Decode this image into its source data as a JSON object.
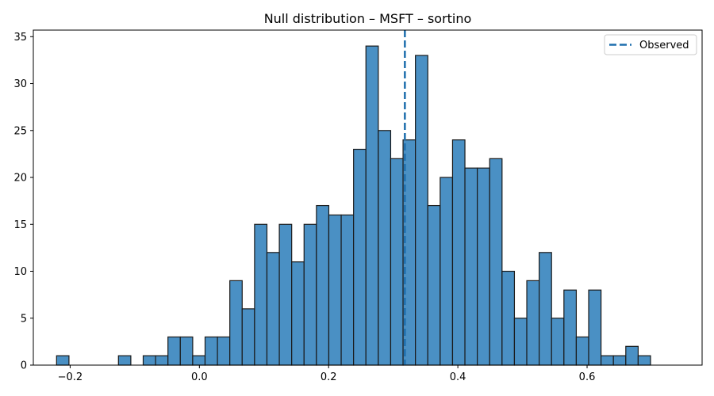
{
  "chart_data": {
    "type": "bar",
    "title": "Null distribution – MSFT – sortino",
    "xlabel": "",
    "ylabel": "",
    "xlim": [
      -0.257,
      0.778
    ],
    "ylim": [
      0,
      35.7
    ],
    "bin_start": -0.221,
    "bin_width": 0.01915,
    "values": [
      1,
      0,
      0,
      0,
      0,
      1,
      0,
      1,
      1,
      3,
      3,
      1,
      3,
      3,
      9,
      6,
      15,
      12,
      15,
      11,
      15,
      17,
      16,
      16,
      23,
      34,
      25,
      22,
      24,
      33,
      17,
      20,
      24,
      21,
      21,
      22,
      10,
      5,
      9,
      12,
      5,
      8,
      3,
      8,
      1,
      1,
      2,
      1
    ],
    "x_ticks": [
      "−0.2",
      "0.0",
      "0.2",
      "0.4",
      "0.6"
    ],
    "x_tick_values": [
      -0.2,
      0.0,
      0.2,
      0.4,
      0.6
    ],
    "y_ticks": [
      "0",
      "5",
      "10",
      "15",
      "20",
      "25",
      "30",
      "35"
    ],
    "y_tick_values": [
      0,
      5,
      10,
      15,
      20,
      25,
      30,
      35
    ],
    "observed": 0.318,
    "legend": {
      "position": "upper right",
      "entries": [
        {
          "label": "Observed",
          "style": "dashed-line"
        }
      ]
    },
    "grid": false,
    "colors": {
      "bar_fill": "#4a90c4",
      "bar_edge": "#1a1a1a",
      "observed_line": "#1f6fad"
    }
  }
}
